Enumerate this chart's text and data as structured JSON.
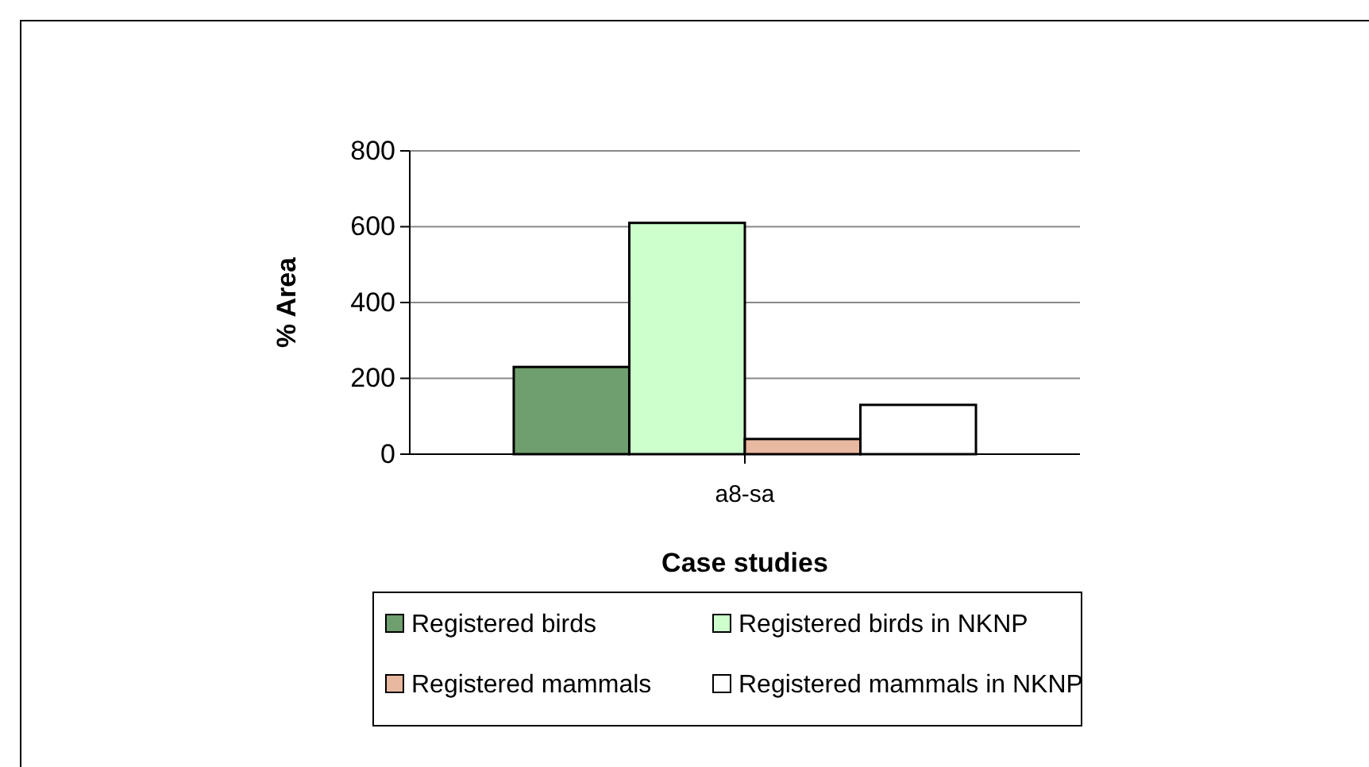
{
  "chart_data": {
    "type": "bar",
    "xlabel": "Case studies",
    "ylabel": "% Area",
    "categories": [
      "a8-sa"
    ],
    "series": [
      {
        "name": "Registered birds",
        "color": "#6f9f6f",
        "values": [
          230
        ]
      },
      {
        "name": "Registered birds in NKNP",
        "color": "#ccffcc",
        "values": [
          610
        ]
      },
      {
        "name": "Registered mammals",
        "color": "#e8b8a0",
        "values": [
          40
        ]
      },
      {
        "name": "Registered mammals in NKNP",
        "color": "#ffffff",
        "values": [
          130
        ]
      }
    ],
    "ylim": [
      0,
      800
    ],
    "yticks": [
      0,
      200,
      400,
      600,
      800
    ],
    "grid": "y",
    "legend": "bottom"
  }
}
